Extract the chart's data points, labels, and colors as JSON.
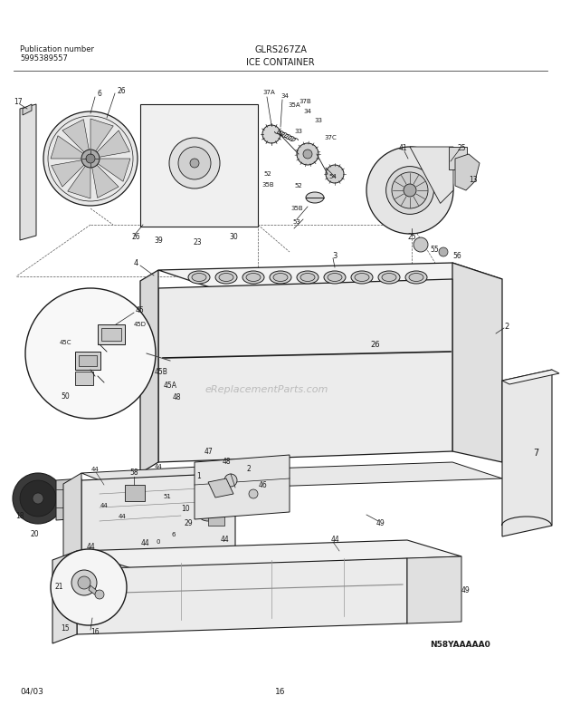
{
  "title_center": "GLRS267ZA",
  "title_sub": "ICE CONTAINER",
  "pub_label": "Publication number",
  "pub_number": "5995389557",
  "date_label": "04/03",
  "page_number": "16",
  "diagram_code": "N58YAAAAA0",
  "watermark": "eReplacementParts.com",
  "bg_color": "#ffffff",
  "line_color": "#1a1a1a",
  "fig_width": 6.2,
  "fig_height": 7.89,
  "dpi": 100
}
